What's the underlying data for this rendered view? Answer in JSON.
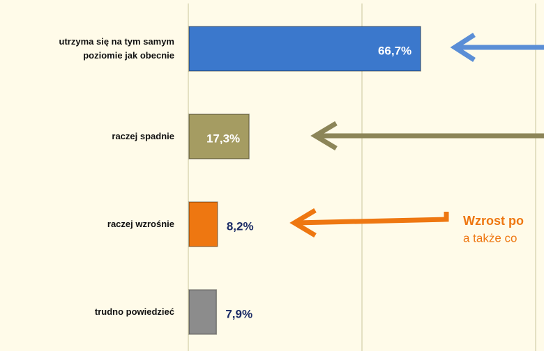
{
  "chart_data": {
    "type": "bar",
    "orientation": "horizontal",
    "categories": [
      "utrzyma się na tym samym poziomie jak obecnie",
      "raczej spadnie",
      "raczej wzrośnie",
      "trudno powiedzieć"
    ],
    "values": [
      66.7,
      17.3,
      8.2,
      7.9
    ],
    "value_labels": [
      "66,7%",
      "17,3%",
      "8,2%",
      "7,9%"
    ],
    "colors": [
      "#3b78cc",
      "#a59c62",
      "#ee7711",
      "#8c8c8c"
    ],
    "xlim": [
      0,
      100
    ],
    "xticks": [
      0,
      50,
      100
    ],
    "grid": true,
    "annotations": [
      "Wzrost po",
      "a także co"
    ]
  }
}
